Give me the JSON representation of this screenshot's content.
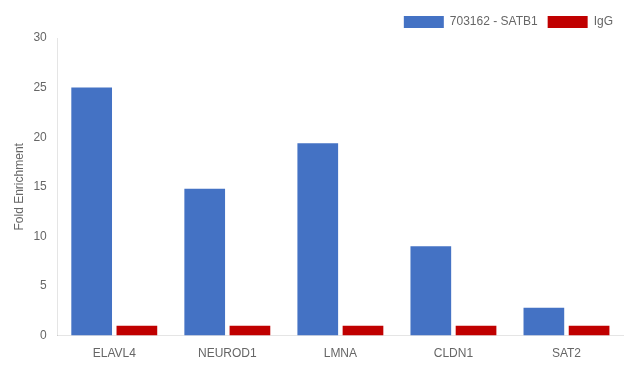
{
  "chart_data": {
    "type": "bar",
    "categories": [
      "ELAVL4",
      "NEUROD1",
      "LMNA",
      "CLDN1",
      "SAT2"
    ],
    "series": [
      {
        "name": "703162 - SATB1",
        "color": "#4472C4",
        "values": [
          25.0,
          14.8,
          19.4,
          9.0,
          2.8
        ]
      },
      {
        "name": "IgG",
        "color": "#C00000",
        "values": [
          1.0,
          1.0,
          1.0,
          1.0,
          1.0
        ]
      }
    ],
    "ylabel": "Fold Enrichment",
    "ylim": [
      0,
      30
    ],
    "yticks": [
      0,
      5,
      10,
      15,
      20,
      25,
      30
    ],
    "grid": false,
    "legend": "upper right"
  }
}
